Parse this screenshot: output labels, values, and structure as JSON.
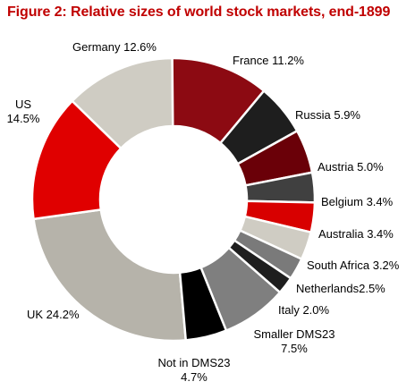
{
  "chart_data": {
    "type": "pie",
    "variant": "donut",
    "title": "Figure 2: Relative sizes of world stock markets, end-1899",
    "slices": [
      {
        "label": "UK",
        "value": 24.2,
        "display": "UK 24.2%",
        "color": "#b6b3aa"
      },
      {
        "label": "US",
        "value": 14.5,
        "display": "US\n14.5%",
        "color": "#e00000"
      },
      {
        "label": "Germany",
        "value": 12.6,
        "display": "Germany 12.6%",
        "color": "#cfccc3"
      },
      {
        "label": "France",
        "value": 11.2,
        "display": "France 11.2%",
        "color": "#8c0a12"
      },
      {
        "label": "Russia",
        "value": 5.9,
        "display": "Russia 5.9%",
        "color": "#1e1e1e"
      },
      {
        "label": "Austria",
        "value": 5.0,
        "display": "Austria 5.0%",
        "color": "#6a0008"
      },
      {
        "label": "Belgium",
        "value": 3.4,
        "display": "Belgium 3.4%",
        "color": "#404040"
      },
      {
        "label": "Australia",
        "value": 3.4,
        "display": "Australia 3.4%",
        "color": "#d80000"
      },
      {
        "label": "South Africa",
        "value": 3.2,
        "display": "South Africa 3.2%",
        "color": "#cfccc3"
      },
      {
        "label": "Netherlands",
        "value": 2.5,
        "display": "Netherlands2.5%",
        "color": "#7a7a7a"
      },
      {
        "label": "Italy",
        "value": 2.0,
        "display": "Italy 2.0%",
        "color": "#1e1e1e"
      },
      {
        "label": "Smaller DMS23",
        "value": 7.5,
        "display": "Smaller DMS23\n7.5%",
        "color": "#7f7f7f"
      },
      {
        "label": "Not in DMS23",
        "value": 4.7,
        "display": "Not in DMS23\n4.7%",
        "color": "#000000"
      }
    ]
  }
}
